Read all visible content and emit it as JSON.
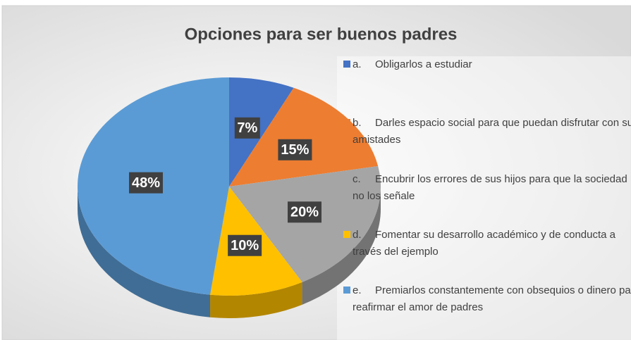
{
  "chart_data": {
    "type": "pie",
    "title": "Opciones para ser buenos padres",
    "categories": [
      "a.\tObligarlos a estudiar",
      "b.\tDarles espacio social para que puedan disfrutar con sus amistades",
      "c.\tEncubrir los errores de sus hijos para que la sociedad no los señale",
      "d.\tFomentar su desarrollo académico y de conducta a través del ejemplo",
      "e.\tPremiarlos constantemente con obsequios o dinero para reafirmar el amor de padres"
    ],
    "values": [
      7,
      15,
      20,
      10,
      48
    ],
    "value_labels": [
      "7%",
      "15%",
      "20%",
      "10%",
      "48%"
    ],
    "colors": [
      "#4472c4",
      "#ed7d31",
      "#a5a5a5",
      "#ffc000",
      "#5b9bd5"
    ],
    "legend": "right"
  }
}
